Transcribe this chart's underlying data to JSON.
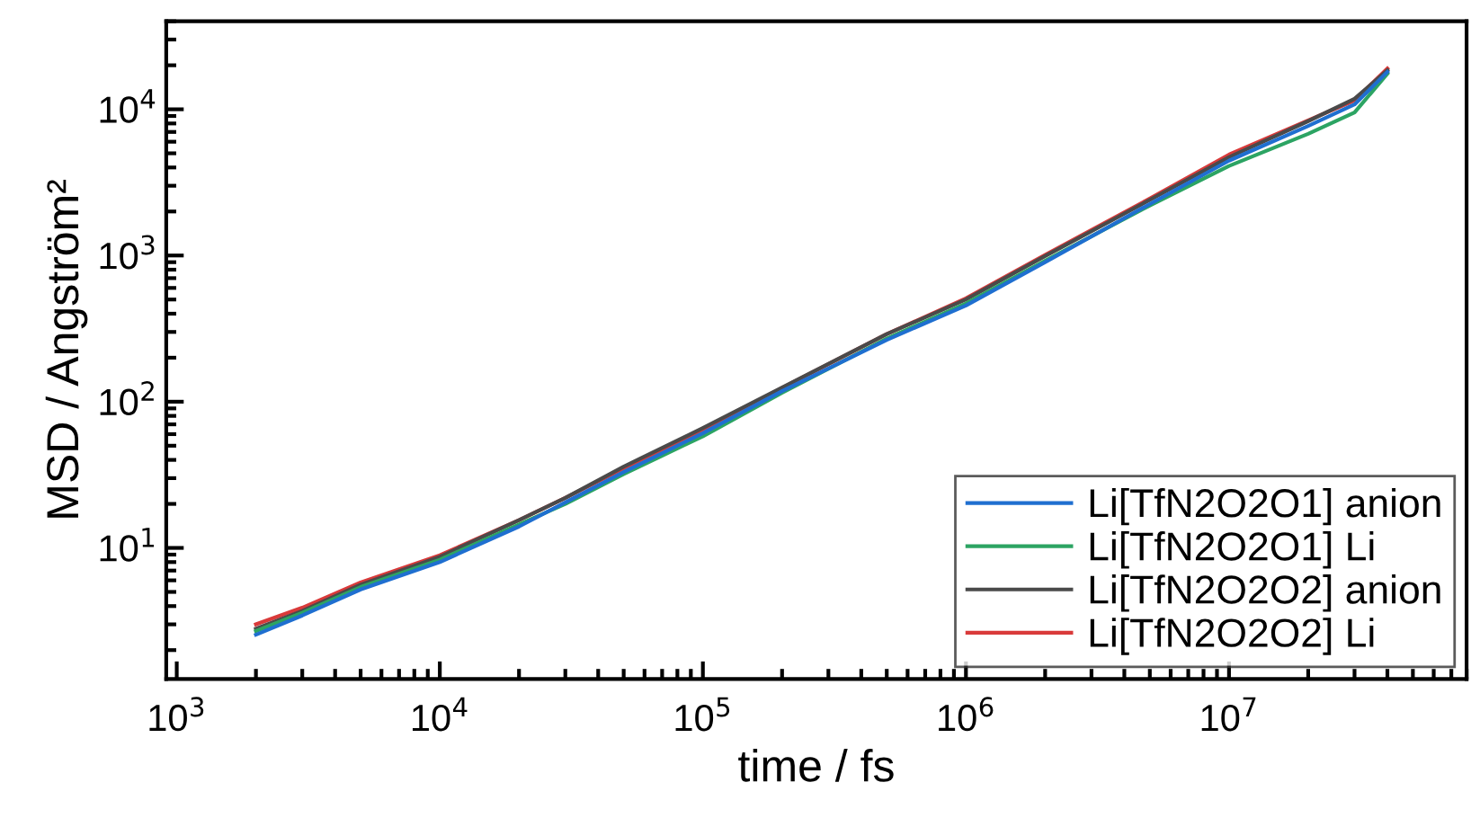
{
  "chart_data": {
    "type": "line",
    "xlabel": "time / fs",
    "ylabel": "MSD / Angström²",
    "log": "xy",
    "grid": false,
    "legend": "bottom right",
    "marker": "none",
    "line_style": "solid",
    "x": [
      2000,
      3000,
      5000,
      10000,
      20000,
      30000,
      50000,
      100000,
      200000,
      500000,
      1000000,
      2000000,
      5000000,
      10000000,
      20000000,
      30000000,
      40000000
    ],
    "xlim": [
      912,
      80000000
    ],
    "ylim": [
      1.27,
      40000
    ],
    "xticks": [
      {
        "value": 1000,
        "label": "10$^{3}$"
      },
      {
        "value": 10000,
        "label": "10$^{4}$"
      },
      {
        "value": 100000,
        "label": "10$^{5}$"
      },
      {
        "value": 1000000,
        "label": "10$^{6}$"
      },
      {
        "value": 10000000,
        "label": "10$^{7}$"
      }
    ],
    "yticks": [
      {
        "value": 10,
        "label": "10$^{1}$"
      },
      {
        "value": 100,
        "label": "10$^{2}$"
      },
      {
        "value": 1000,
        "label": "10$^{3}$"
      },
      {
        "value": 10000,
        "label": "10$^{4}$"
      }
    ],
    "series": [
      {
        "name": "Li[TfN2O2O1] anion",
        "color": "#1f6fd0",
        "values": [
          2.55,
          3.45,
          5.2,
          8.0,
          14,
          20.5,
          33,
          61,
          118,
          265,
          455,
          900,
          2250,
          4450,
          7700,
          10800,
          18000
        ]
      },
      {
        "name": "Li[TfN2O2O1] Li",
        "color": "#2ca463",
        "values": [
          2.7,
          3.6,
          5.4,
          8.3,
          14.5,
          20,
          32,
          58,
          115,
          270,
          470,
          920,
          2200,
          4100,
          6800,
          9500,
          17500
        ]
      },
      {
        "name": "Li[TfN2O2O2] anion",
        "color": "#4a4a4a",
        "values": [
          2.8,
          3.7,
          5.6,
          8.7,
          15.5,
          22,
          36,
          66,
          125,
          290,
          500,
          990,
          2400,
          4700,
          8300,
          11800,
          18500
        ]
      },
      {
        "name": "Li[TfN2O2O2] Li",
        "color": "#d93a3a",
        "values": [
          3.0,
          3.9,
          5.8,
          8.9,
          15.5,
          22,
          35,
          64,
          124,
          290,
          510,
          1010,
          2450,
          4900,
          8400,
          11500,
          19000
        ]
      }
    ]
  }
}
